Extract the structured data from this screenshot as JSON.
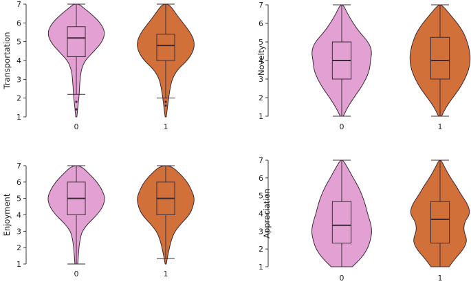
{
  "chart_data": [
    {
      "type": "violin",
      "ylabel": "Transportation",
      "ylim": [
        1,
        7
      ],
      "yticks": [
        "1",
        "2",
        "3",
        "4",
        "5",
        "6",
        "7"
      ],
      "categories": [
        "0",
        "1"
      ],
      "groups": [
        {
          "category": "0",
          "color": "#e3a0d2",
          "density": [
            [
              1.0,
              0.02
            ],
            [
              1.5,
              0.05
            ],
            [
              2.0,
              0.09
            ],
            [
              2.5,
              0.11
            ],
            [
              3.0,
              0.13
            ],
            [
              3.5,
              0.17
            ],
            [
              4.0,
              0.3
            ],
            [
              4.5,
              0.62
            ],
            [
              5.0,
              0.9
            ],
            [
              5.5,
              1.0
            ],
            [
              6.0,
              0.84
            ],
            [
              6.5,
              0.5
            ],
            [
              6.8,
              0.25
            ],
            [
              7.0,
              0.1
            ]
          ],
          "q1": 4.2,
          "median": 5.2,
          "q3": 5.8,
          "whisker_low": 2.2,
          "whisker_high": 7.0,
          "outliers": [
            1.4,
            1.8
          ]
        },
        {
          "category": "1",
          "color": "#d2703a",
          "density": [
            [
              1.0,
              0.02
            ],
            [
              1.5,
              0.06
            ],
            [
              2.0,
              0.1
            ],
            [
              2.5,
              0.15
            ],
            [
              3.0,
              0.22
            ],
            [
              3.5,
              0.4
            ],
            [
              4.0,
              0.75
            ],
            [
              4.5,
              0.96
            ],
            [
              5.0,
              1.0
            ],
            [
              5.5,
              0.85
            ],
            [
              6.0,
              0.6
            ],
            [
              6.5,
              0.35
            ],
            [
              7.0,
              0.12
            ]
          ],
          "q1": 4.0,
          "median": 4.8,
          "q3": 5.4,
          "whisker_low": 2.0,
          "whisker_high": 7.0,
          "outliers": [
            1.6,
            1.8
          ]
        }
      ]
    },
    {
      "type": "violin",
      "ylabel": "Novelty",
      "ylim": [
        1,
        7
      ],
      "yticks": [
        "1",
        "2",
        "3",
        "4",
        "5",
        "6",
        "7"
      ],
      "categories": [
        "0",
        "1"
      ],
      "groups": [
        {
          "category": "0",
          "color": "#e3a0d2",
          "density": [
            [
              1.0,
              0.05
            ],
            [
              1.5,
              0.2
            ],
            [
              2.0,
              0.4
            ],
            [
              2.5,
              0.62
            ],
            [
              3.0,
              0.8
            ],
            [
              3.5,
              0.92
            ],
            [
              4.0,
              0.95
            ],
            [
              4.5,
              1.0
            ],
            [
              5.0,
              0.88
            ],
            [
              5.5,
              0.6
            ],
            [
              6.0,
              0.38
            ],
            [
              6.5,
              0.2
            ],
            [
              7.0,
              0.05
            ]
          ],
          "q1": 3.0,
          "median": 4.0,
          "q3": 5.0,
          "whisker_low": 1.0,
          "whisker_high": 7.0,
          "outliers": []
        },
        {
          "category": "1",
          "color": "#d2703a",
          "density": [
            [
              1.0,
              0.05
            ],
            [
              1.5,
              0.2
            ],
            [
              2.0,
              0.42
            ],
            [
              2.5,
              0.65
            ],
            [
              3.0,
              0.82
            ],
            [
              3.5,
              0.95
            ],
            [
              4.0,
              1.0
            ],
            [
              4.5,
              0.98
            ],
            [
              5.0,
              0.9
            ],
            [
              5.5,
              0.78
            ],
            [
              6.0,
              0.58
            ],
            [
              6.5,
              0.32
            ],
            [
              7.0,
              0.06
            ]
          ],
          "q1": 3.0,
          "median": 4.0,
          "q3": 5.25,
          "whisker_low": 1.0,
          "whisker_high": 7.0,
          "outliers": []
        }
      ]
    },
    {
      "type": "violin",
      "ylabel": "Enjoyment",
      "ylim": [
        1,
        7
      ],
      "yticks": [
        "1",
        "2",
        "3",
        "4",
        "5",
        "6",
        "7"
      ],
      "categories": [
        "0",
        "1"
      ],
      "groups": [
        {
          "category": "0",
          "color": "#e3a0d2",
          "density": [
            [
              1.0,
              0.05
            ],
            [
              1.5,
              0.07
            ],
            [
              2.0,
              0.09
            ],
            [
              2.5,
              0.13
            ],
            [
              3.0,
              0.2
            ],
            [
              3.5,
              0.42
            ],
            [
              4.0,
              0.72
            ],
            [
              4.5,
              0.92
            ],
            [
              5.0,
              1.0
            ],
            [
              5.5,
              0.9
            ],
            [
              6.0,
              0.72
            ],
            [
              6.5,
              0.45
            ],
            [
              7.0,
              0.15
            ]
          ],
          "q1": 4.0,
          "median": 5.0,
          "q3": 6.0,
          "whisker_low": 1.0,
          "whisker_high": 7.0,
          "outliers": []
        },
        {
          "category": "1",
          "color": "#d2703a",
          "density": [
            [
              1.0,
              0.02
            ],
            [
              1.3,
              0.05
            ],
            [
              1.5,
              0.07
            ],
            [
              2.0,
              0.13
            ],
            [
              2.5,
              0.2
            ],
            [
              3.0,
              0.32
            ],
            [
              3.5,
              0.55
            ],
            [
              4.0,
              0.82
            ],
            [
              4.5,
              0.95
            ],
            [
              5.0,
              1.0
            ],
            [
              5.5,
              0.9
            ],
            [
              6.0,
              0.75
            ],
            [
              6.5,
              0.5
            ],
            [
              7.0,
              0.18
            ]
          ],
          "q1": 4.0,
          "median": 5.0,
          "q3": 6.0,
          "whisker_low": 1.33,
          "whisker_high": 7.0,
          "outliers": []
        }
      ]
    },
    {
      "type": "violin",
      "ylabel": "Appreciation",
      "ylim": [
        1,
        7
      ],
      "yticks": [
        "1",
        "2",
        "3",
        "4",
        "5",
        "6",
        "7"
      ],
      "categories": [
        "0",
        "1"
      ],
      "groups": [
        {
          "category": "0",
          "color": "#e3a0d2",
          "density": [
            [
              1.0,
              0.35
            ],
            [
              1.5,
              0.65
            ],
            [
              2.0,
              0.85
            ],
            [
              2.5,
              0.95
            ],
            [
              3.0,
              1.0
            ],
            [
              3.5,
              0.95
            ],
            [
              4.0,
              0.85
            ],
            [
              4.5,
              0.78
            ],
            [
              5.0,
              0.68
            ],
            [
              5.5,
              0.55
            ],
            [
              6.0,
              0.38
            ],
            [
              6.5,
              0.22
            ],
            [
              7.0,
              0.05
            ]
          ],
          "q1": 2.33,
          "median": 3.33,
          "q3": 4.67,
          "whisker_low": 1.0,
          "whisker_high": 7.0,
          "outliers": []
        },
        {
          "category": "1",
          "color": "#d2703a",
          "density": [
            [
              1.0,
              0.3
            ],
            [
              1.5,
              0.52
            ],
            [
              2.0,
              0.78
            ],
            [
              2.5,
              0.9
            ],
            [
              3.0,
              0.78
            ],
            [
              3.5,
              0.8
            ],
            [
              4.0,
              1.0
            ],
            [
              4.5,
              0.92
            ],
            [
              5.0,
              0.72
            ],
            [
              5.5,
              0.55
            ],
            [
              6.0,
              0.35
            ],
            [
              6.5,
              0.18
            ],
            [
              7.0,
              0.04
            ]
          ],
          "q1": 2.33,
          "median": 3.67,
          "q3": 4.67,
          "whisker_low": 1.0,
          "whisker_high": 7.0,
          "outliers": []
        }
      ]
    }
  ]
}
